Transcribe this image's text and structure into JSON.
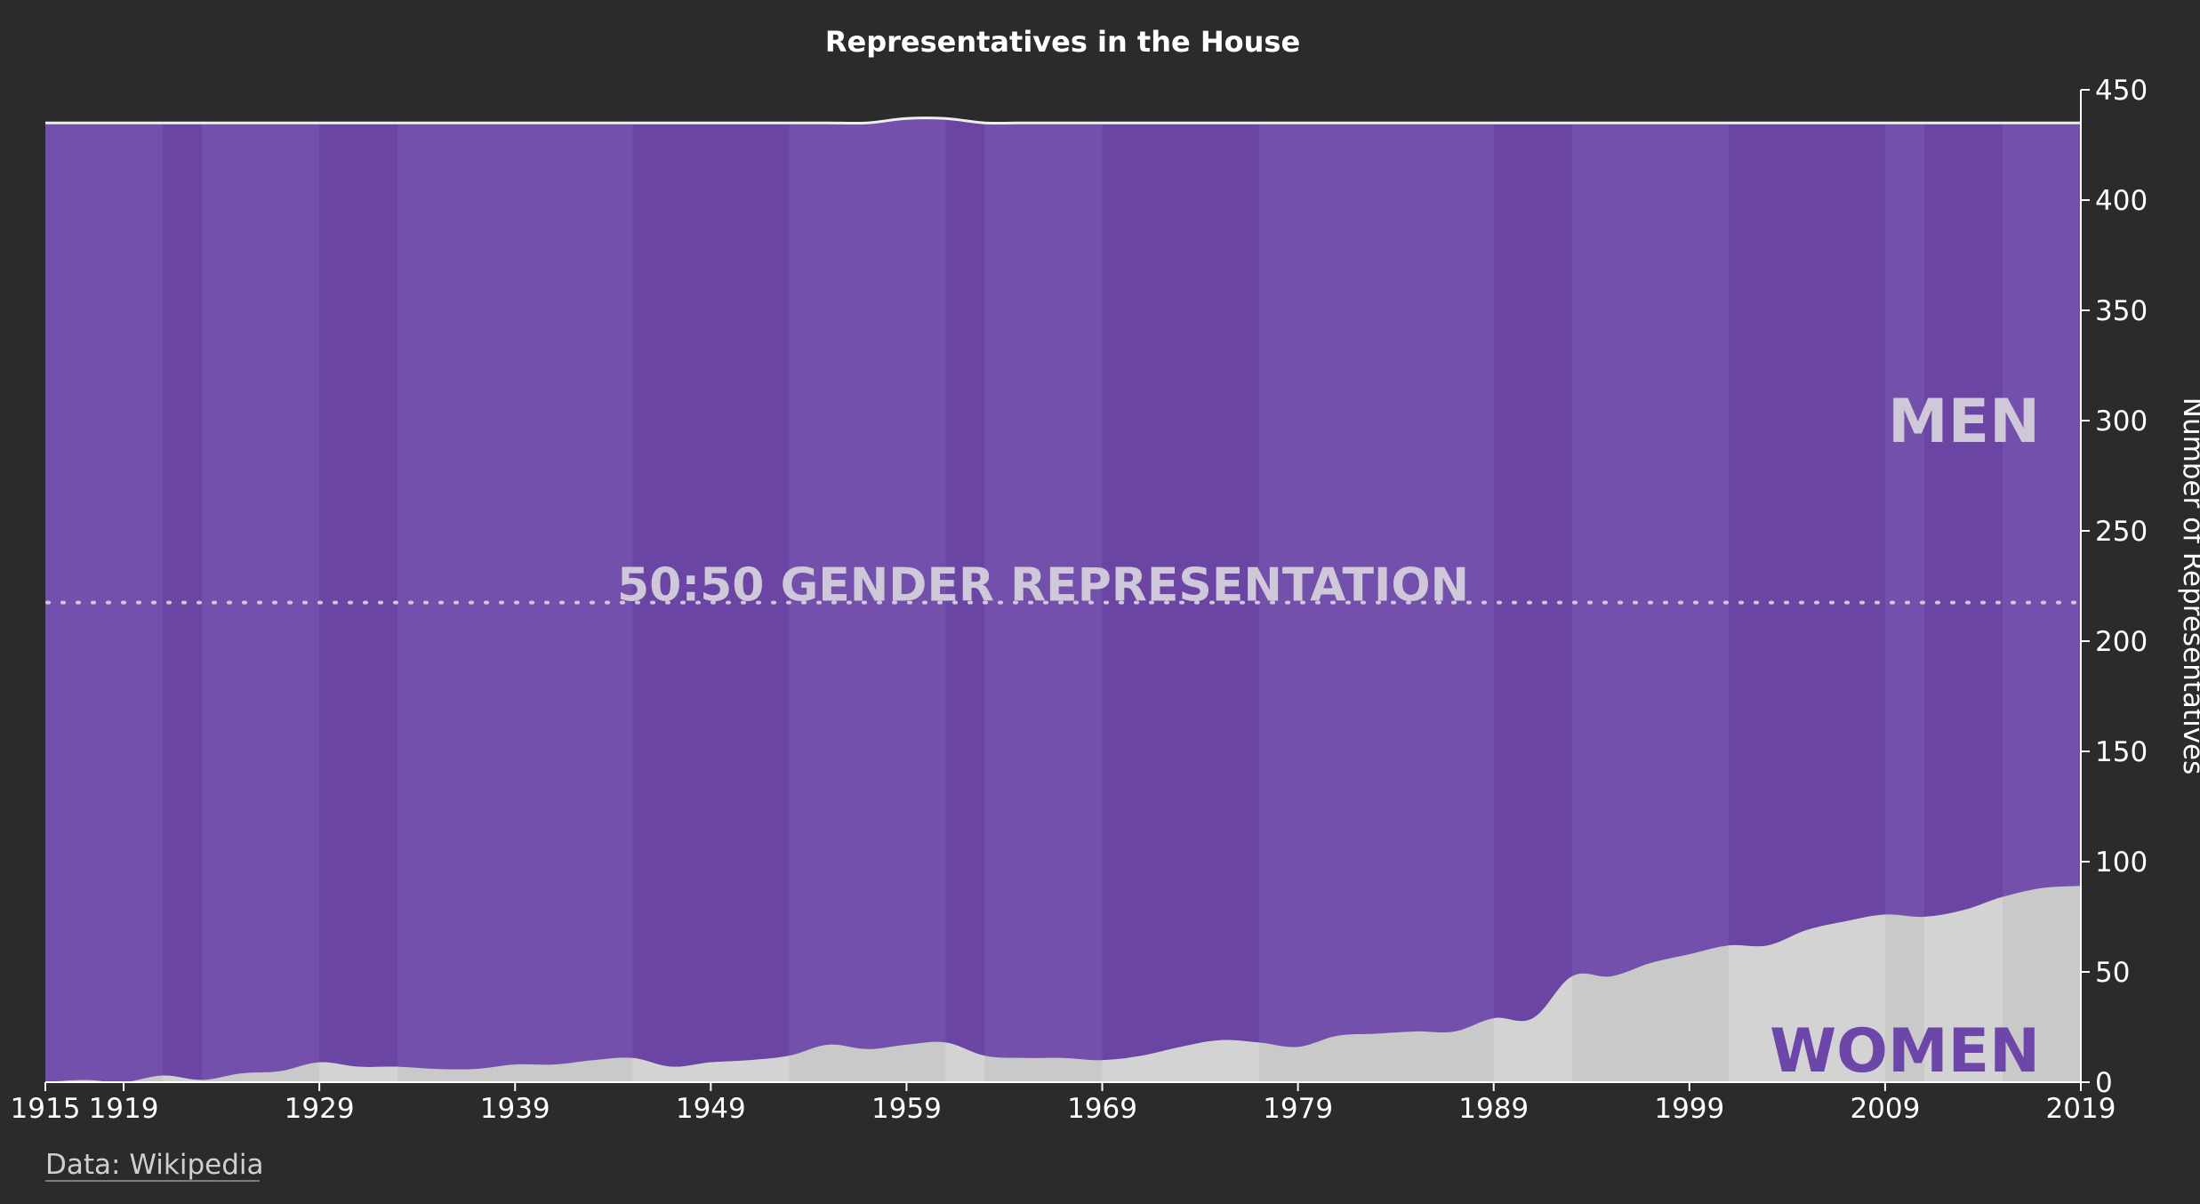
{
  "colors": {
    "background": "#2b2b2b",
    "men": "#7450ad",
    "men_band_dark": "#6a45a3",
    "women": "#c9c9c9",
    "women_band": "#d3d3d3",
    "total_line": "#eeeeee",
    "axis": "#ffffff",
    "annotation_light": "#cfc8d8",
    "annotation_purple": "#6c46a8"
  },
  "chart_data": {
    "type": "area",
    "title": "Representatives in the House",
    "ylabel": "Number of Representatives",
    "xlabel": "",
    "xlim": [
      1915,
      2019
    ],
    "ylim": [
      0,
      450
    ],
    "y_axis_position": "right",
    "grid": false,
    "legend": "none",
    "x_ticks": [
      1915,
      1919,
      1929,
      1939,
      1949,
      1959,
      1969,
      1979,
      1989,
      1999,
      2009,
      2019
    ],
    "y_ticks": [
      0,
      50,
      100,
      150,
      200,
      250,
      300,
      350,
      400,
      450
    ],
    "reference_line": {
      "value": 217.5,
      "label": "50:50 GENDER REPRESENTATION",
      "style": "dotted"
    },
    "area_labels": {
      "men": "MEN",
      "women": "WOMEN"
    },
    "x": [
      1915,
      1917,
      1919,
      1921,
      1923,
      1925,
      1927,
      1929,
      1931,
      1933,
      1935,
      1937,
      1939,
      1941,
      1943,
      1945,
      1947,
      1949,
      1951,
      1953,
      1955,
      1957,
      1959,
      1961,
      1963,
      1965,
      1967,
      1969,
      1971,
      1973,
      1975,
      1977,
      1979,
      1981,
      1983,
      1985,
      1987,
      1989,
      1991,
      1993,
      1995,
      1997,
      1999,
      2001,
      2003,
      2005,
      2007,
      2009,
      2011,
      2013,
      2015,
      2017,
      2019
    ],
    "series": [
      {
        "name": "WOMEN",
        "values": [
          0,
          1,
          0,
          3,
          1,
          4,
          5,
          9,
          7,
          7,
          6,
          6,
          8,
          8,
          10,
          11,
          7,
          9,
          10,
          12,
          17,
          15,
          17,
          18,
          12,
          11,
          11,
          10,
          12,
          16,
          19,
          18,
          16,
          21,
          22,
          23,
          23,
          29,
          29,
          48,
          48,
          54,
          58,
          62,
          62,
          69,
          73,
          76,
          75,
          78,
          84,
          88,
          89
        ]
      },
      {
        "name": "MEN",
        "values": [
          435,
          434,
          435,
          432,
          434,
          431,
          430,
          426,
          428,
          428,
          429,
          429,
          427,
          427,
          425,
          424,
          428,
          426,
          425,
          423,
          418,
          420,
          420,
          419,
          423,
          424,
          424,
          425,
          423,
          419,
          416,
          417,
          419,
          414,
          413,
          412,
          412,
          406,
          406,
          387,
          387,
          381,
          377,
          373,
          373,
          366,
          362,
          359,
          360,
          357,
          351,
          347,
          346
        ]
      }
    ],
    "shaded_periods": [
      [
        1921,
        1923
      ],
      [
        1929,
        1933
      ],
      [
        1945,
        1953
      ],
      [
        1961,
        1963
      ],
      [
        1969,
        1977
      ],
      [
        1989,
        1993
      ],
      [
        2001,
        2009
      ],
      [
        2011,
        2015
      ]
    ]
  },
  "footer": {
    "source": "Data: Wikipedia"
  }
}
